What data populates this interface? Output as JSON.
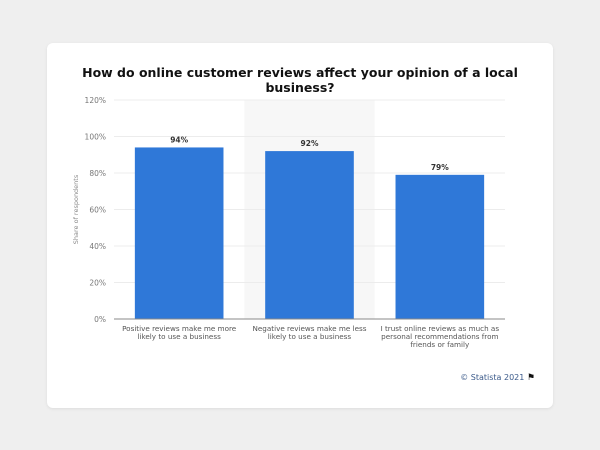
{
  "chart_data": {
    "type": "bar",
    "title": "How do online customer reviews affect your opinion of a local business?",
    "ylabel": "Share of respondents",
    "xlabel": "",
    "ylim": [
      0,
      120
    ],
    "yticks": [
      "0%",
      "20%",
      "40%",
      "60%",
      "80%",
      "100%",
      "120%"
    ],
    "categories": [
      [
        "Positive reviews make me more",
        "likely to use a business"
      ],
      [
        "Negative reviews make me less",
        "likely to use a business"
      ],
      [
        "I trust online reviews as much as",
        "personal recommendations from",
        "friends or family"
      ]
    ],
    "values": [
      94,
      92,
      79
    ],
    "data_labels": [
      "94%",
      "92%",
      "79%"
    ],
    "bar_color": "#2f78d8",
    "grid": true,
    "highlighted_category": 1
  },
  "credit": "© Statista 2021",
  "flag_icon": "flag-icon"
}
